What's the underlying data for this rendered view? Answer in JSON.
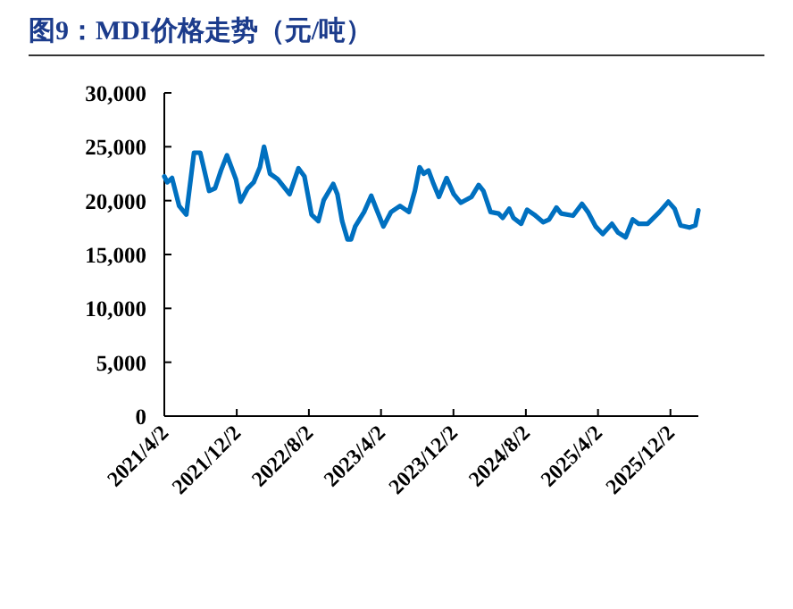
{
  "chart_data": {
    "type": "line",
    "title": "图9：MDI价格走势（元/吨）",
    "x": [
      "2021-04-02",
      "2021-04-12",
      "2021-04-28",
      "2021-05-22",
      "2021-06-15",
      "2021-07-11",
      "2021-08-01",
      "2021-08-31",
      "2021-09-20",
      "2021-10-10",
      "2021-10-30",
      "2021-11-29",
      "2021-12-15",
      "2022-01-08",
      "2022-01-28",
      "2022-02-18",
      "2022-03-04",
      "2022-03-24",
      "2022-04-19",
      "2022-05-29",
      "2022-06-28",
      "2022-07-18",
      "2022-08-11",
      "2022-09-03",
      "2022-09-21",
      "2022-10-23",
      "2022-11-06",
      "2022-11-22",
      "2022-12-10",
      "2022-12-22",
      "2023-01-05",
      "2023-02-04",
      "2023-02-28",
      "2023-03-17",
      "2023-04-10",
      "2023-05-06",
      "2023-06-05",
      "2023-07-05",
      "2023-07-25",
      "2023-08-10",
      "2023-08-24",
      "2023-09-09",
      "2023-09-24",
      "2023-10-14",
      "2023-11-09",
      "2023-12-03",
      "2023-12-27",
      "2024-02-01",
      "2024-02-25",
      "2024-03-12",
      "2024-04-05",
      "2024-05-02",
      "2024-05-16",
      "2024-06-07",
      "2024-06-21",
      "2024-07-17",
      "2024-08-06",
      "2024-08-30",
      "2024-09-29",
      "2024-10-19",
      "2024-11-13",
      "2024-11-29",
      "2025-01-08",
      "2025-02-07",
      "2025-02-27",
      "2025-03-25",
      "2025-04-18",
      "2025-05-19",
      "2025-06-08",
      "2025-07-04",
      "2025-07-28",
      "2025-08-17",
      "2025-09-16",
      "2025-10-26",
      "2025-11-25",
      "2025-12-16",
      "2026-01-05",
      "2026-02-04",
      "2026-02-24",
      "2026-03-06"
    ],
    "series": [
      {
        "color": "#0070c0",
        "values": [
          22250,
          21700,
          22100,
          19500,
          18700,
          24450,
          24450,
          20900,
          21150,
          22800,
          24200,
          22000,
          19900,
          21150,
          21700,
          23100,
          25000,
          22500,
          22000,
          20600,
          23000,
          22250,
          18700,
          18100,
          20050,
          21550,
          20600,
          18100,
          16400,
          16400,
          17600,
          18950,
          20450,
          19250,
          17600,
          18950,
          19500,
          18950,
          20900,
          23100,
          22500,
          22800,
          21700,
          20350,
          22100,
          20600,
          19800,
          20350,
          21450,
          20900,
          18950,
          18800,
          18400,
          19250,
          18400,
          17850,
          19150,
          18700,
          18000,
          18250,
          19350,
          18800,
          18600,
          19700,
          18950,
          17600,
          16900,
          17850,
          17050,
          16600,
          18250,
          17850,
          17850,
          18950,
          19900,
          19250,
          17700,
          17500,
          17700,
          19100
        ]
      }
    ],
    "xlim": [
      "2021-04-02",
      "2026-03-06"
    ],
    "xticks": [
      {
        "value": "2021-04-02",
        "label": "2021/4/2"
      },
      {
        "value": "2021-12-02",
        "label": "2021/12/2"
      },
      {
        "value": "2022-08-02",
        "label": "2022/8/2"
      },
      {
        "value": "2023-04-02",
        "label": "2023/4/2"
      },
      {
        "value": "2023-12-02",
        "label": "2023/12/2"
      },
      {
        "value": "2024-08-02",
        "label": "2024/8/2"
      },
      {
        "value": "2025-04-02",
        "label": "2025/4/2"
      },
      {
        "value": "2025-12-02",
        "label": "2025/12/2"
      }
    ],
    "ylim": [
      0,
      30000
    ],
    "yticks": [
      {
        "value": 0,
        "label": "0"
      },
      {
        "value": 5000,
        "label": "5,000"
      },
      {
        "value": 10000,
        "label": "10,000"
      },
      {
        "value": 15000,
        "label": "15,000"
      },
      {
        "value": 20000,
        "label": "20,000"
      },
      {
        "value": 25000,
        "label": "25,000"
      },
      {
        "value": 30000,
        "label": "30,000"
      }
    ]
  }
}
